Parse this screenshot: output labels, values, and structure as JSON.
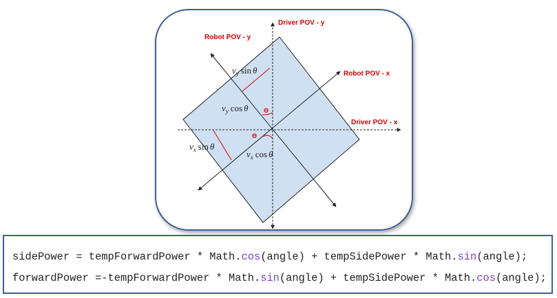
{
  "labels": {
    "driver_y": "Driver POV - y",
    "robot_y": "Robot POV - y",
    "robot_x": "Robot POV - x",
    "driver_x": "Driver POV - x"
  },
  "math": {
    "vy_sin": {
      "v": "v",
      "sub": "y",
      "fn": "sin",
      "arg": "θ"
    },
    "vy_cos": {
      "v": "v",
      "sub": "y",
      "fn": "cos",
      "arg": "θ"
    },
    "vx_sin": {
      "v": "v",
      "sub": "x",
      "fn": "sin",
      "arg": "θ"
    },
    "vx_cos": {
      "v": "v",
      "sub": "x",
      "fn": "cos",
      "arg": "θ"
    }
  },
  "angle_marks": [
    "Θ",
    "Θ"
  ],
  "code": {
    "line1": [
      {
        "t": "sidePower = tempForwardPower * Math."
      },
      {
        "t": "cos",
        "k": true
      },
      {
        "t": "(angle) + tempSidePower * Math."
      },
      {
        "t": "sin",
        "k": true
      },
      {
        "t": "(angle);"
      }
    ],
    "line2": [
      {
        "t": "forwardPower =-tempForwardPower * Math."
      },
      {
        "t": "sin",
        "k": true
      },
      {
        "t": "(angle) + tempSidePower * Math."
      },
      {
        "t": "cos",
        "k": true
      },
      {
        "t": "(angle);"
      }
    ]
  },
  "colors": {
    "frame_border": "#3d5f96",
    "robot_fill": "#cfe0f2",
    "label_red": "#d40000",
    "keyword": "#7a3fd6"
  }
}
